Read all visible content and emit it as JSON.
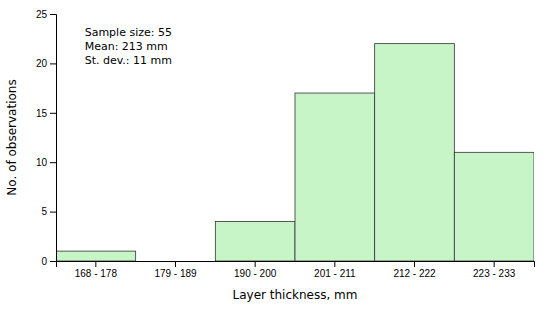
{
  "chart_data": {
    "type": "bar",
    "categories": [
      "168 - 178",
      "179 - 189",
      "190 - 200",
      "201 - 211",
      "212 - 222",
      "223 - 233"
    ],
    "values": [
      1,
      0,
      4,
      17,
      22,
      11
    ],
    "color": "#c8f5c8",
    "xlabel": "Layer thickness, mm",
    "ylabel": "No. of observations",
    "ylim": [
      0,
      25
    ],
    "yticks": [
      0,
      5,
      10,
      15,
      20,
      25
    ],
    "annotation": "Sample size: 55\nMean: 213 mm\nSt. dev.: 11 mm",
    "grid": false
  }
}
